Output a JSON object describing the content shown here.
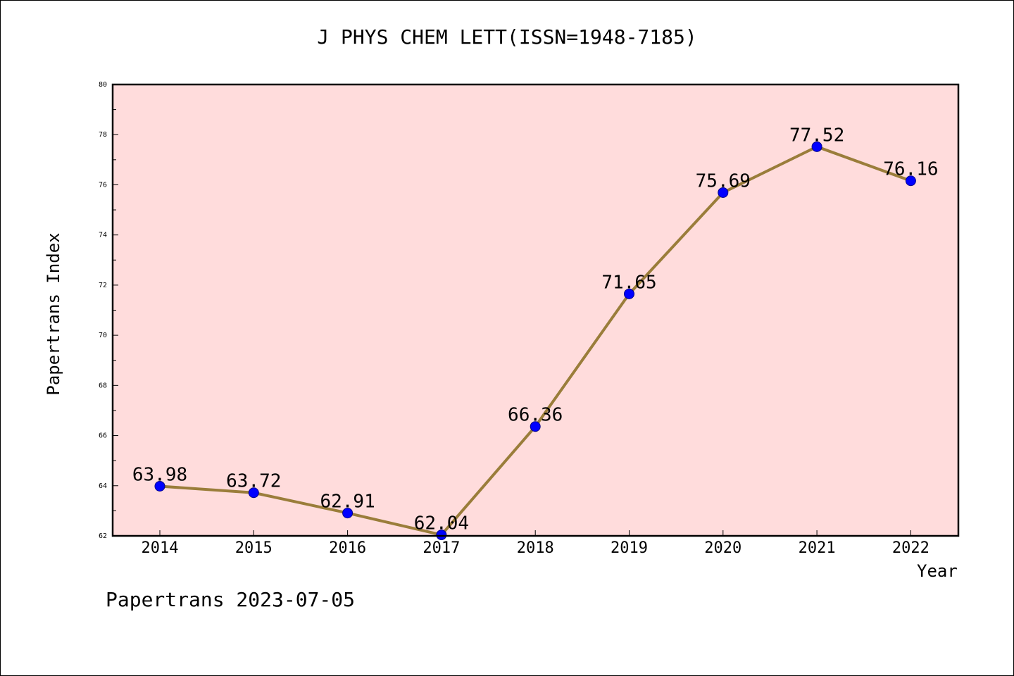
{
  "chart_data": {
    "type": "line",
    "title": "J PHYS CHEM LETT(ISSN=1948-7185)",
    "xlabel": "Year",
    "ylabel": "Papertrans Index",
    "categories": [
      "2014",
      "2015",
      "2016",
      "2017",
      "2018",
      "2019",
      "2020",
      "2021",
      "2022"
    ],
    "values": [
      63.98,
      63.72,
      62.91,
      62.04,
      66.36,
      71.65,
      75.69,
      77.52,
      76.16
    ],
    "data_labels": [
      "63.98",
      "63.72",
      "62.91",
      "62.04",
      "66.36",
      "71.65",
      "75.69",
      "77.52",
      "76.16"
    ],
    "ylim": [
      62,
      80
    ],
    "yticks": [
      62,
      64,
      66,
      68,
      70,
      72,
      74,
      76,
      78,
      80
    ],
    "grid": false,
    "legend": "none",
    "colors": {
      "plot_background": "#ffdcdc",
      "line": "#9a7d3a",
      "marker": "#0000ff"
    }
  },
  "footer": {
    "text": "Papertrans 2023-07-05"
  }
}
